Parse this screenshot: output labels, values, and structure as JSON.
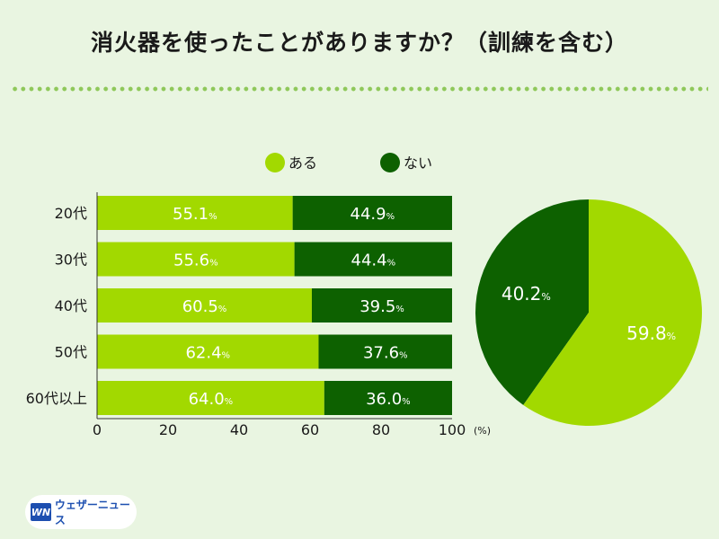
{
  "title": "消火器を使ったことがありますか？（訓練を含む）",
  "logo": {
    "mark": "WN",
    "text": "ウェザーニュース"
  },
  "colors": {
    "aru": "#a2d900",
    "nai": "#0d6100",
    "background": "#e9f5e1",
    "dots": "#8fc85a"
  },
  "chart_data": [
    {
      "type": "bar",
      "orientation": "horizontal",
      "stacked": true,
      "categories": [
        "20代",
        "30代",
        "40代",
        "50代",
        "60代以上"
      ],
      "series": [
        {
          "name": "ある",
          "values": [
            55.1,
            55.6,
            60.5,
            62.4,
            64.0
          ],
          "labels": [
            "55.1",
            "55.6",
            "60.5",
            "62.4",
            "64.0"
          ]
        },
        {
          "name": "ない",
          "values": [
            44.9,
            44.4,
            39.5,
            37.6,
            36.0
          ],
          "labels": [
            "44.9",
            "44.4",
            "39.5",
            "37.6",
            "36.0"
          ]
        }
      ],
      "value_suffix": "%",
      "xlim": [
        0,
        100
      ],
      "xticks": [
        "0",
        "20",
        "40",
        "60",
        "80",
        "100"
      ],
      "xunit": "(%)",
      "legend": {
        "position": "top",
        "entries": [
          "ある",
          "ない"
        ]
      }
    },
    {
      "type": "pie",
      "slices": [
        {
          "name": "ない",
          "value": 40.2,
          "label": "40.2"
        },
        {
          "name": "ある",
          "value": 59.8,
          "label": "59.8"
        }
      ],
      "value_suffix": "%"
    }
  ]
}
